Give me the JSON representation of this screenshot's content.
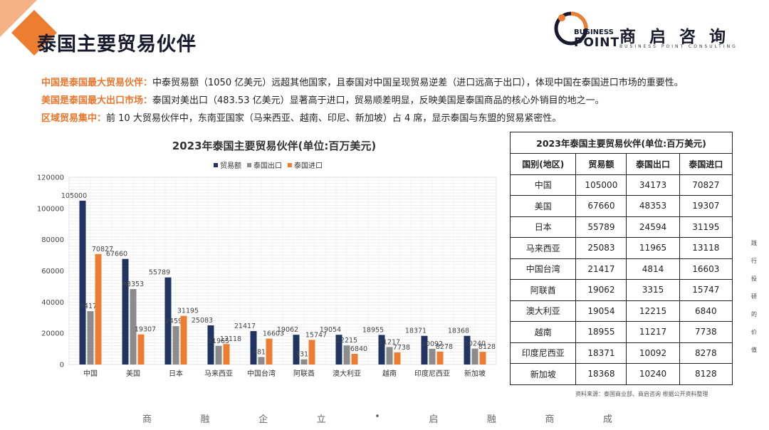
{
  "header": {
    "title": "泰国主要贸易伙伴",
    "logo_word_1": "BUSINESS",
    "logo_word_2": "POINT",
    "logo_cn": "商启咨询",
    "logo_en": "BUSINESS POINT CONSULTING"
  },
  "bullets": [
    {
      "label": "中国是泰国最大贸易伙伴：",
      "text": "中泰贸易额（1050 亿美元）远超其他国家，且泰国对中国呈现贸易逆差（进口远高于出口），体现中国在泰国进口市场的重要性。"
    },
    {
      "label": "美国是泰国最大出口市场：",
      "text": "泰国对美出口（483.53 亿美元）显著高于进口，贸易顺差明显，反映美国是泰国商品的核心外销目的地之一。"
    },
    {
      "label": "区域贸易集中：",
      "text": "前 10 大贸易伙伴中，东南亚国家（马来西亚、越南、印尼、新加坡）占 4 席，显示泰国与东盟的贸易紧密性。"
    }
  ],
  "colors": {
    "total": "#1f3461",
    "export": "#8c8c8c",
    "import": "#ed7d31",
    "accent": "#e8772e"
  },
  "chart_data": {
    "type": "bar",
    "title": "2023年泰国主要贸易伙伴(单位:百万美元)",
    "categories": [
      "中国",
      "美国",
      "日本",
      "马来西亚",
      "中国台湾",
      "阿联酋",
      "澳大利亚",
      "越南",
      "印度尼西亚",
      "新加坡"
    ],
    "series": [
      {
        "name": "贸易额",
        "values": [
          105000,
          67660,
          55789,
          25083,
          21417,
          19062,
          19054,
          18955,
          18371,
          18368
        ]
      },
      {
        "name": "泰国出口",
        "values": [
          34173,
          48353,
          24594,
          11965,
          4814,
          3315,
          12215,
          11217,
          10092,
          10240
        ]
      },
      {
        "name": "泰国进口",
        "values": [
          70827,
          19307,
          31195,
          13118,
          16603,
          15747,
          6840,
          7738,
          8278,
          8128
        ]
      }
    ],
    "ylim": [
      0,
      120000
    ],
    "yticks": [
      "0",
      "20000",
      "40000",
      "60000",
      "80000",
      "100000",
      "120000"
    ],
    "legend": "top",
    "grid": true
  },
  "table": {
    "title": "2023年泰国主要贸易伙伴(单位:百万美元)",
    "headers": [
      "国别(地区)",
      "贸易额",
      "泰国出口",
      "泰国进口"
    ],
    "rows": [
      [
        "中国",
        "105000",
        "34173",
        "70827"
      ],
      [
        "美国",
        "67660",
        "48353",
        "19307"
      ],
      [
        "日本",
        "55789",
        "24594",
        "31195"
      ],
      [
        "马来西亚",
        "25083",
        "11965",
        "13118"
      ],
      [
        "中国台湾",
        "21417",
        "4814",
        "16603"
      ],
      [
        "阿联酋",
        "19062",
        "3315",
        "15747"
      ],
      [
        "澳大利亚",
        "19054",
        "12215",
        "6840"
      ],
      [
        "越南",
        "18955",
        "11217",
        "7738"
      ],
      [
        "印度尼西亚",
        "18371",
        "10092",
        "8278"
      ],
      [
        "新加坡",
        "18368",
        "10240",
        "8128"
      ]
    ],
    "source": "资料来源：泰国商业部、商启咨询 根据公开资料整理"
  },
  "footer": [
    "商",
    "融",
    "企",
    "立",
    "•",
    "启",
    "融",
    "商",
    "成"
  ],
  "side": [
    "践",
    "行",
    "投",
    "研",
    "的",
    "价",
    "值"
  ]
}
